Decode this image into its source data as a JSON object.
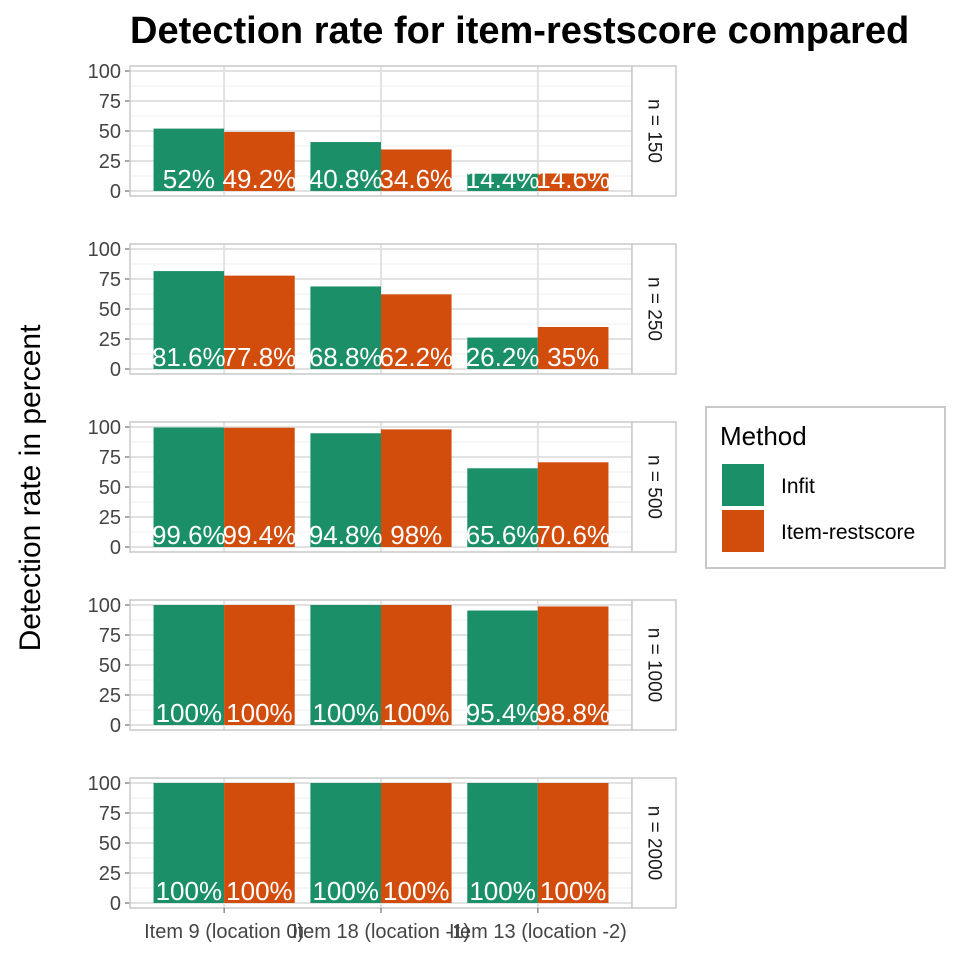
{
  "chart_data": {
    "type": "bar",
    "title": "Detection rate for item-restscore compared",
    "ylabel": "Detection rate in percent",
    "xlabel": "",
    "ylim": [
      0,
      100
    ],
    "yticks": [
      0,
      25,
      50,
      75,
      100
    ],
    "grid": true,
    "categories": [
      "Item 9 (location 0)",
      "Item 18 (location -1)",
      "Item 13 (location -2)"
    ],
    "legend": {
      "title": "Method",
      "position": "right",
      "entries": [
        {
          "label": "Infit",
          "color": "#1b9068"
        },
        {
          "label": "Item-restscore",
          "color": "#d24c0c"
        }
      ]
    },
    "facets": [
      {
        "label": "n = 150",
        "series": [
          {
            "name": "Infit",
            "values": [
              52,
              40.8,
              14.4
            ],
            "labels": [
              "52%",
              "40.8%",
              "14.4%"
            ]
          },
          {
            "name": "Item-restscore",
            "values": [
              49.2,
              34.6,
              14.6
            ],
            "labels": [
              "49.2%",
              "34.6%",
              "14.6%"
            ]
          }
        ]
      },
      {
        "label": "n = 250",
        "series": [
          {
            "name": "Infit",
            "values": [
              81.6,
              68.8,
              26.2
            ],
            "labels": [
              "81.6%",
              "68.8%",
              "26.2%"
            ]
          },
          {
            "name": "Item-restscore",
            "values": [
              77.8,
              62.2,
              35
            ],
            "labels": [
              "77.8%",
              "62.2%",
              "35%"
            ]
          }
        ]
      },
      {
        "label": "n = 500",
        "series": [
          {
            "name": "Infit",
            "values": [
              99.6,
              94.8,
              65.6
            ],
            "labels": [
              "99.6%",
              "94.8%",
              "65.6%"
            ]
          },
          {
            "name": "Item-restscore",
            "values": [
              99.4,
              98,
              70.6
            ],
            "labels": [
              "99.4%",
              "98%",
              "70.6%"
            ]
          }
        ]
      },
      {
        "label": "n = 1000",
        "series": [
          {
            "name": "Infit",
            "values": [
              100,
              100,
              95.4
            ],
            "labels": [
              "100%",
              "100%",
              "95.4%"
            ]
          },
          {
            "name": "Item-restscore",
            "values": [
              100,
              100,
              98.8
            ],
            "labels": [
              "100%",
              "100%",
              "98.8%"
            ]
          }
        ]
      },
      {
        "label": "n = 2000",
        "series": [
          {
            "name": "Infit",
            "values": [
              100,
              100,
              100
            ],
            "labels": [
              "100%",
              "100%",
              "100%"
            ]
          },
          {
            "name": "Item-restscore",
            "values": [
              100,
              100,
              100
            ],
            "labels": [
              "100%",
              "100%",
              "100%"
            ]
          }
        ]
      }
    ]
  }
}
